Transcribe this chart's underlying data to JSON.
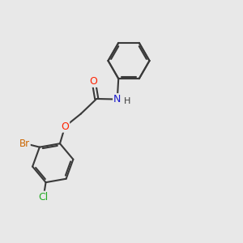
{
  "bg_color": "#e8e8e8",
  "bond_color": "#3a3a3a",
  "bond_width": 1.5,
  "figsize": [
    3.0,
    3.0
  ],
  "dpi": 100,
  "atom_colors": {
    "O": "#ff2200",
    "N": "#1a1acc",
    "Br": "#cc6600",
    "Cl": "#22aa22",
    "C": "#3a3a3a",
    "H": "#3a3a3a"
  },
  "font_size": 9
}
